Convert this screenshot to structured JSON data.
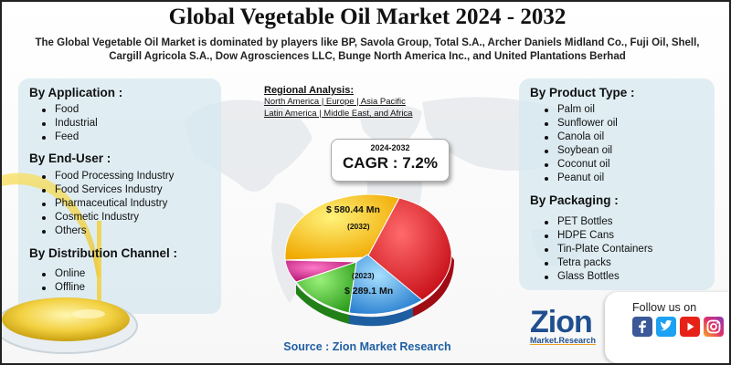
{
  "title": "Global Vegetable Oil Market 2024 - 2032",
  "subtitle_line1": "The Global Vegetable Oil Market is dominated by players like BP, Savola Group, Total S.A., Archer Daniels Midland Co., Fuji Oil, Shell,",
  "subtitle_line2": "Cargill Agricola S.A., Dow Agrosciences LLC, Bunge North America Inc., and United Plantations Berhad",
  "by_application": {
    "heading": "By Application :",
    "items": [
      "Food",
      "Industrial",
      "Feed"
    ]
  },
  "by_end_user": {
    "heading": "By End-User :",
    "items": [
      "Food Processing Industry",
      "Food Services Industry",
      "Pharmaceutical Industry",
      "Cosmetic Industry",
      "Others"
    ]
  },
  "by_distribution": {
    "heading": "By Distribution Channel :",
    "items": [
      "Online",
      "Offline"
    ]
  },
  "by_product_type": {
    "heading": "By Product Type :",
    "items": [
      "Palm oil",
      "Sunflower oil",
      "Canola oil",
      "Soybean oil",
      "Coconut oil",
      "Peanut oil"
    ]
  },
  "by_packaging": {
    "heading": "By Packaging :",
    "items": [
      "PET Bottles",
      "HDPE Cans",
      "Tin-Plate Containers",
      "Tetra packs",
      "Glass Bottles"
    ]
  },
  "regional": {
    "heading": "Regional Analysis:",
    "line1": "North America | Europe | Asia Pacific",
    "line2": "Latin America | Middle East, and Africa"
  },
  "cagr": {
    "years": "2024-2032",
    "value": "CAGR : 7.2%"
  },
  "pie": {
    "value_2032": "$ 580.44 Mn",
    "year_2032": "(2032)",
    "year_2023": "(2023)",
    "value_2023": "$ 289.1 Mn",
    "colors": {
      "yellow": "#f5c518",
      "red": "#e8222a",
      "blue": "#3aa0e0",
      "green": "#4cc03a",
      "magenta": "#d8208a"
    }
  },
  "source": "Source : Zion Market Research",
  "follow": {
    "label": "Follow us on"
  },
  "social_icons": [
    "facebook-icon",
    "twitter-icon",
    "youtube-icon",
    "instagram-icon"
  ],
  "logo": {
    "main": "Zion",
    "sub": "Market.Research"
  }
}
